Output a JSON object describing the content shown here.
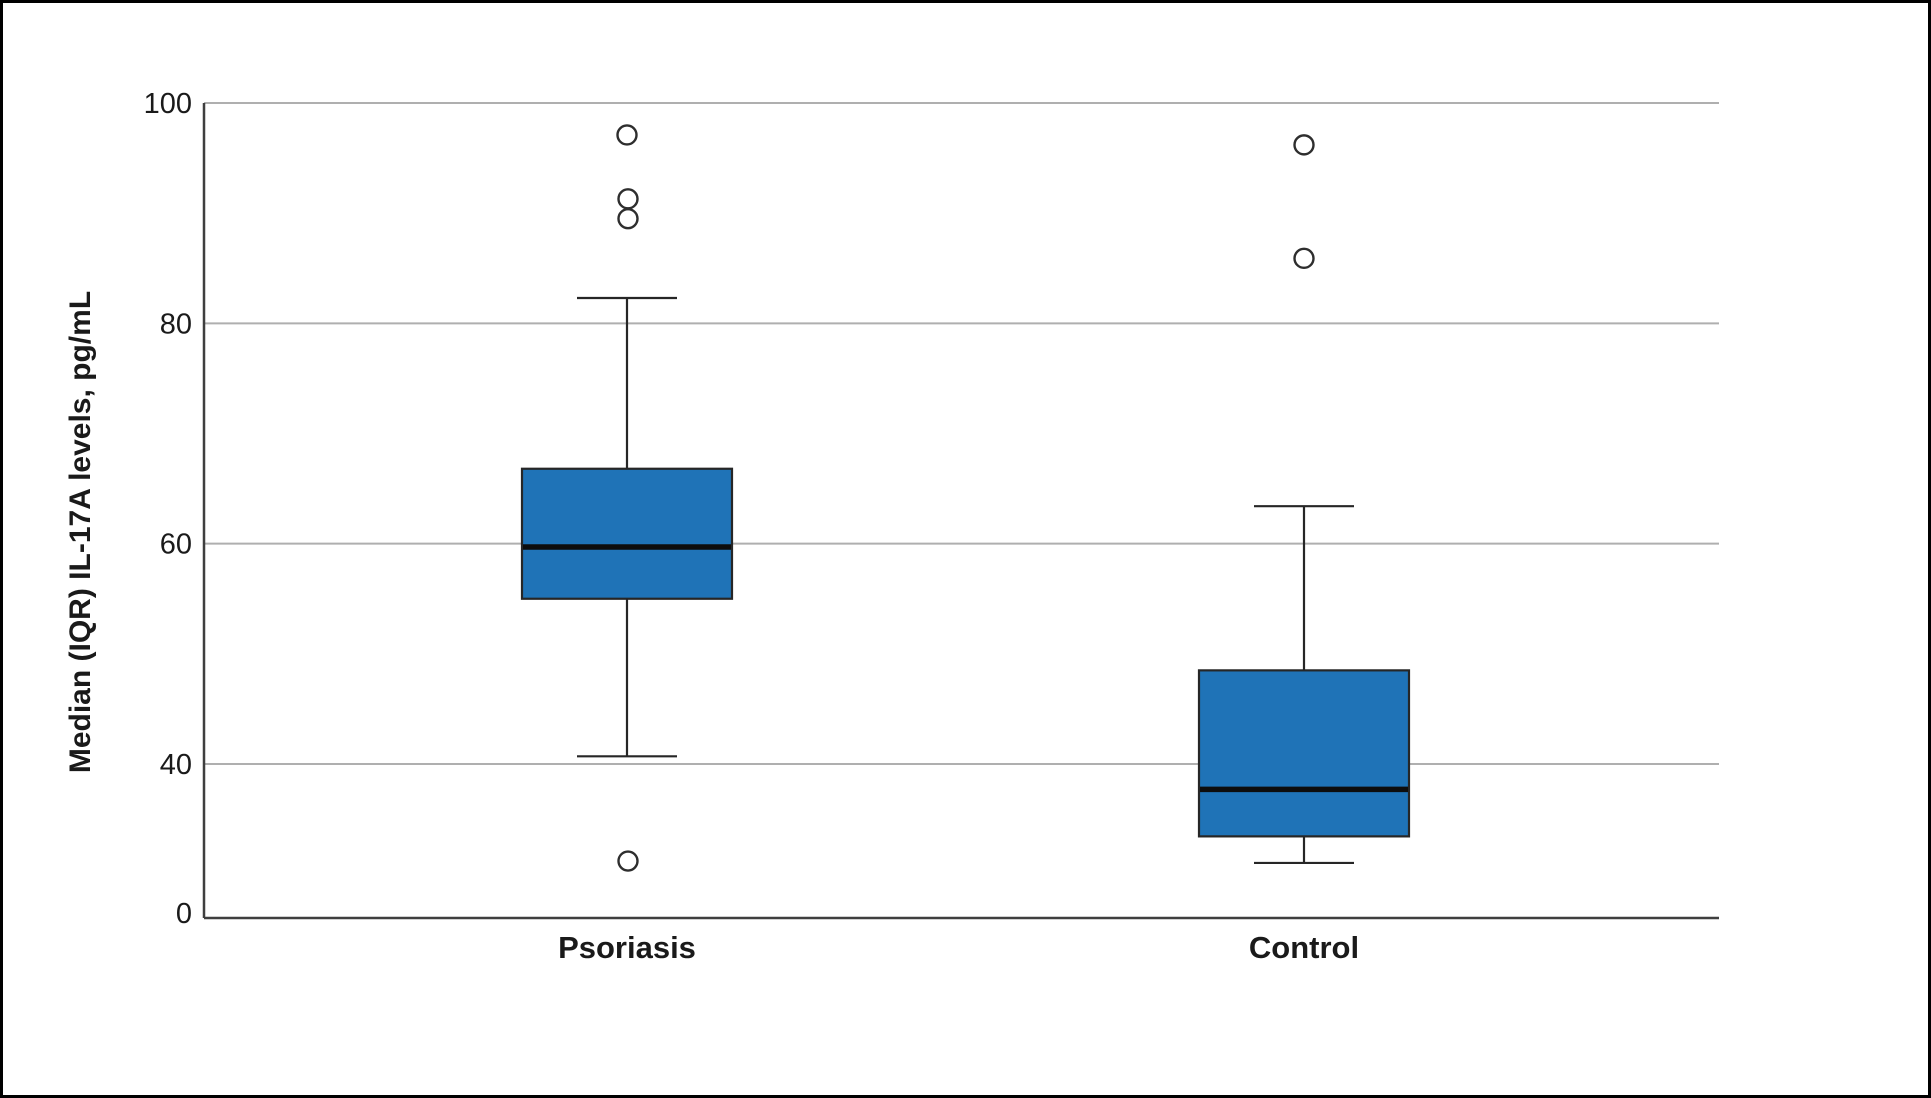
{
  "figure": {
    "background": "#FFFFFF",
    "border_color": "#000000"
  },
  "chart_data": {
    "type": "boxplot",
    "title": "",
    "xlabel": "",
    "ylabel": "Median (IQR) IL-17A levels, pg/mL",
    "categories": [
      "Psoriasis",
      "Control"
    ],
    "y_ticks": [
      0,
      40,
      60,
      80,
      100
    ],
    "ylim": [
      0,
      100
    ],
    "grid": "horizontal gridlines at 40, 60, 80, 100; no vertical gridlines",
    "legend": "none",
    "axis_note": "vertical spacing between 0 and 40 is compressed relative to the 40-100 range",
    "series": [
      {
        "name": "Psoriasis",
        "whisker_low": 40.7,
        "q1": 55.0,
        "median": 59.7,
        "q3": 66.8,
        "whisker_high": 82.3,
        "outliers": [
          97.1,
          91.3,
          89.5,
          14.8
        ]
      },
      {
        "name": "Control",
        "whisker_low": 14.3,
        "q1": 21.2,
        "median": 33.4,
        "q3": 48.5,
        "whisker_high": 63.4,
        "outliers": [
          96.2,
          85.9
        ]
      }
    ],
    "colors": {
      "box_fill": "#1F73B7",
      "box_stroke": "#262626",
      "median": "#0D0D0D",
      "whisker": "#262626",
      "gridline": "#AFAFAF",
      "axis": "#3F3F3F",
      "text": "#1A1A1A",
      "outlier_stroke": "#2E2E2E"
    }
  }
}
